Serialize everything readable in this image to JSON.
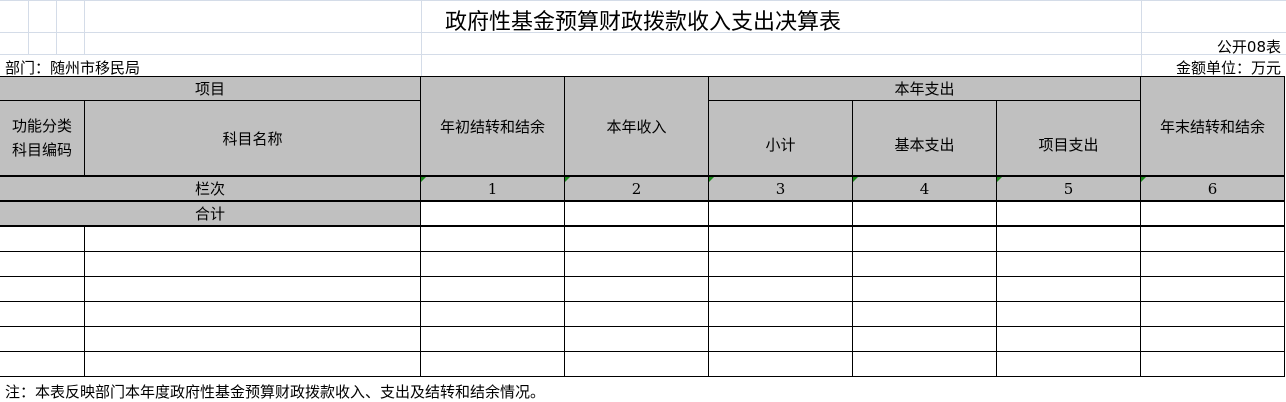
{
  "title": "政府性基金预算财政拨款收入支出决算表",
  "table_no": "公开08表",
  "department": "部门：随州市移民局",
  "unit": "金额单位：万元",
  "headers": {
    "item": "项目",
    "code": "功能分类\n科目编码",
    "name": "科目名称",
    "begin": "年初结转和结余",
    "income": "本年收入",
    "expense": "本年支出",
    "subtotal": "小计",
    "basic": "基本支出",
    "project": "项目支出",
    "end": "年末结转和结余"
  },
  "column_no_label": "栏次",
  "column_numbers": [
    "1",
    "2",
    "3",
    "4",
    "5",
    "6"
  ],
  "total_label": "合计",
  "note": "注：本表反映部门本年度政府性基金预算财政拨款收入、支出及结转和结余情况。"
}
